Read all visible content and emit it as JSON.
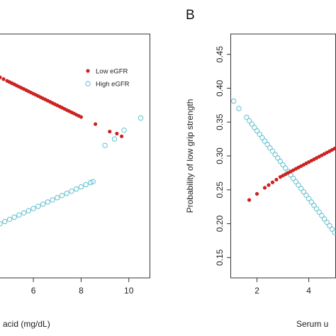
{
  "colors": {
    "low": "#cc2222",
    "high": "#5fbfcf",
    "axis": "#333333"
  },
  "chart_data": [
    {
      "type": "scatter",
      "panel_label": "",
      "title": "",
      "xlabel": "acid (mg/dL)",
      "ylabel": "",
      "xlim": [
        4.6,
        10.9
      ],
      "ylim": [
        0.12,
        0.48
      ],
      "xticks": [
        "6",
        "8",
        "10"
      ],
      "xtick_values": [
        6,
        8,
        10
      ],
      "legend_placement": "top-right",
      "legend": [
        {
          "label": "Low eGFR",
          "marker": "filled-circle",
          "color_key": "low"
        },
        {
          "label": "High eGFR",
          "marker": "open-circle",
          "color_key": "high"
        }
      ],
      "series": [
        {
          "name": "Low eGFR",
          "marker": "filled",
          "color_key": "low",
          "x": [
            4.6,
            4.75,
            4.9,
            5.0,
            5.1,
            5.2,
            5.3,
            5.4,
            5.5,
            5.6,
            5.7,
            5.8,
            5.9,
            6.0,
            6.1,
            6.2,
            6.3,
            6.4,
            6.5,
            6.6,
            6.7,
            6.8,
            6.9,
            7.0,
            7.1,
            7.2,
            7.3,
            7.4,
            7.5,
            7.6,
            7.7,
            7.8,
            7.9,
            8.0,
            8.6,
            9.2,
            9.5,
            9.7
          ],
          "y": [
            0.416,
            0.4134,
            0.4108,
            0.4091,
            0.4074,
            0.4057,
            0.4039,
            0.4022,
            0.4005,
            0.3988,
            0.3971,
            0.3953,
            0.3936,
            0.3919,
            0.3902,
            0.3885,
            0.3867,
            0.385,
            0.3833,
            0.3816,
            0.3799,
            0.3781,
            0.3764,
            0.3747,
            0.373,
            0.3713,
            0.3695,
            0.3678,
            0.3661,
            0.3644,
            0.3627,
            0.3609,
            0.3592,
            0.3575,
            0.347,
            0.336,
            0.333,
            0.329
          ]
        },
        {
          "name": "High eGFR",
          "marker": "open",
          "color_key": "high",
          "x": [
            4.6,
            4.8,
            5.0,
            5.2,
            5.4,
            5.6,
            5.8,
            6.0,
            6.2,
            6.4,
            6.6,
            6.8,
            7.0,
            7.2,
            7.4,
            7.6,
            7.8,
            8.0,
            8.2,
            8.4,
            8.5,
            9.0,
            9.4,
            9.8,
            10.5
          ],
          "y": [
            0.2,
            0.2032,
            0.2064,
            0.2096,
            0.2128,
            0.216,
            0.2192,
            0.2224,
            0.2256,
            0.2288,
            0.232,
            0.2352,
            0.2384,
            0.2416,
            0.2448,
            0.248,
            0.2512,
            0.2544,
            0.2576,
            0.2608,
            0.262,
            0.3155,
            0.325,
            0.338,
            0.356
          ]
        }
      ]
    },
    {
      "type": "scatter",
      "panel_label": "B",
      "title": "",
      "xlabel": "Serum u",
      "ylabel": "Probability of low grip strength",
      "xlim": [
        1.0,
        5.05
      ],
      "ylim": [
        0.12,
        0.48
      ],
      "xticks": [
        "2",
        "4"
      ],
      "xtick_values": [
        2,
        4
      ],
      "yticks": [
        "0.15",
        "0.20",
        "0.25",
        "0.30",
        "0.35",
        "0.40",
        "0.45"
      ],
      "ytick_values": [
        0.15,
        0.2,
        0.25,
        0.3,
        0.35,
        0.4,
        0.45
      ],
      "series": [
        {
          "name": "High eGFR",
          "marker": "open",
          "color_key": "high",
          "x": [
            1.1,
            1.3,
            1.6,
            1.7,
            1.8,
            1.9,
            2.0,
            2.1,
            2.2,
            2.3,
            2.4,
            2.5,
            2.6,
            2.7,
            2.8,
            2.9,
            3.0,
            3.1,
            3.2,
            3.3,
            3.4,
            3.5,
            3.6,
            3.7,
            3.8,
            3.9,
            4.0,
            4.1,
            4.2,
            4.3,
            4.4,
            4.5,
            4.6,
            4.7,
            4.8,
            4.9,
            5.0
          ],
          "y": [
            0.381,
            0.37,
            0.357,
            0.352,
            0.347,
            0.342,
            0.337,
            0.332,
            0.327,
            0.322,
            0.317,
            0.312,
            0.307,
            0.302,
            0.297,
            0.292,
            0.287,
            0.282,
            0.277,
            0.272,
            0.267,
            0.262,
            0.257,
            0.252,
            0.247,
            0.242,
            0.237,
            0.232,
            0.227,
            0.222,
            0.217,
            0.212,
            0.207,
            0.202,
            0.197,
            0.192,
            0.187
          ]
        },
        {
          "name": "Low eGFR",
          "marker": "filled",
          "color_key": "low",
          "x": [
            1.7,
            2.0,
            2.3,
            2.45,
            2.6,
            2.75,
            2.9,
            3.0,
            3.1,
            3.2,
            3.3,
            3.4,
            3.5,
            3.6,
            3.7,
            3.8,
            3.9,
            4.0,
            4.1,
            4.2,
            4.3,
            4.4,
            4.5,
            4.6,
            4.7,
            4.8,
            4.9,
            5.0
          ],
          "y": [
            0.235,
            0.244,
            0.253,
            0.257,
            0.261,
            0.265,
            0.269,
            0.271,
            0.273,
            0.275,
            0.277,
            0.279,
            0.281,
            0.283,
            0.285,
            0.287,
            0.289,
            0.291,
            0.293,
            0.295,
            0.297,
            0.299,
            0.301,
            0.303,
            0.305,
            0.307,
            0.309,
            0.311
          ]
        }
      ]
    }
  ]
}
